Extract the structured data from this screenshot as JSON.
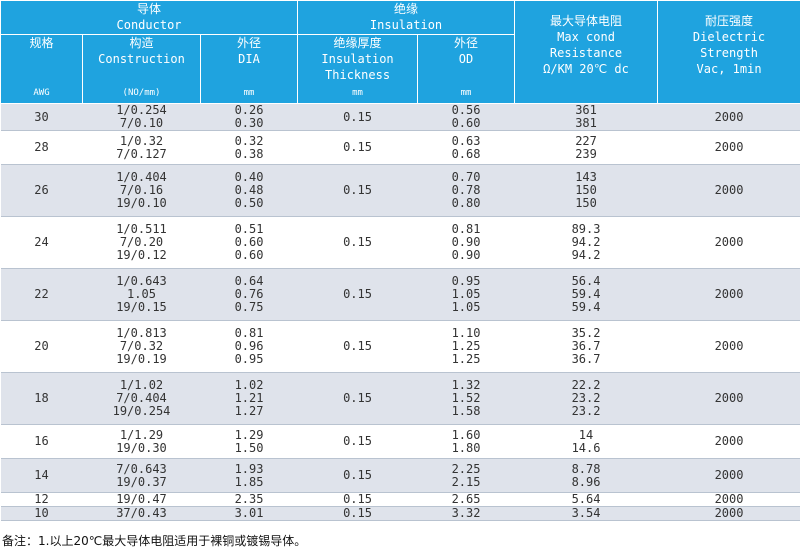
{
  "header": {
    "conductor_cn": "导体",
    "conductor_en": "Conductor",
    "insulation_cn": "绝缘",
    "insulation_en": "Insulation",
    "resistance_cn": "最大导体电阻",
    "resistance_en1": "Max cond",
    "resistance_en2": "Resistance",
    "resistance_en3": "Ω/KM 20℃ dc",
    "dielectric_cn": "耐压强度",
    "dielectric_en1": "Dielectric",
    "dielectric_en2": "Strength",
    "dielectric_en3": "Vac, 1min",
    "gauge_cn": "规格",
    "gauge_unit": "AWG",
    "construction_cn": "构造",
    "construction_en": "Construction",
    "construction_unit": "(NO/mm)",
    "dia_cn": "外径",
    "dia_en": "DIA",
    "dia_unit": "mm",
    "thickness_cn": "绝缘厚度",
    "thickness_en1": "Insulation",
    "thickness_en2": "Thickness",
    "thickness_unit": "mm",
    "od_cn": "外径",
    "od_en": "OD",
    "od_unit": "mm"
  },
  "rows": [
    {
      "awg": "30",
      "construction": [
        "1/0.254",
        "7/0.10"
      ],
      "dia": [
        "0.26",
        "0.30"
      ],
      "thickness": "0.15",
      "od": [
        "0.56",
        "0.60"
      ],
      "resistance": [
        "361",
        "381"
      ],
      "dielectric": "2000"
    },
    {
      "awg": "28",
      "construction": [
        "1/0.32",
        "7/0.127"
      ],
      "dia": [
        "0.32",
        "0.38"
      ],
      "thickness": "0.15",
      "od": [
        "0.63",
        "0.68"
      ],
      "resistance": [
        "227",
        "239"
      ],
      "dielectric": "2000"
    },
    {
      "awg": "26",
      "construction": [
        "1/0.404",
        "7/0.16",
        "19/0.10"
      ],
      "dia": [
        "0.40",
        "0.48",
        "0.50"
      ],
      "thickness": "0.15",
      "od": [
        "0.70",
        "0.78",
        "0.80"
      ],
      "resistance": [
        "143",
        "150",
        "150"
      ],
      "dielectric": "2000"
    },
    {
      "awg": "24",
      "construction": [
        "1/0.511",
        "7/0.20",
        "19/0.12"
      ],
      "dia": [
        "0.51",
        "0.60",
        "0.60"
      ],
      "thickness": "0.15",
      "od": [
        "0.81",
        "0.90",
        "0.90"
      ],
      "resistance": [
        "89.3",
        "94.2",
        "94.2"
      ],
      "dielectric": "2000"
    },
    {
      "awg": "22",
      "construction": [
        "1/0.643",
        "1.05",
        "19/0.15"
      ],
      "dia": [
        "0.64",
        "0.76",
        "0.75"
      ],
      "thickness": "0.15",
      "od": [
        "0.95",
        "1.05",
        "1.05"
      ],
      "resistance": [
        "56.4",
        "59.4",
        "59.4"
      ],
      "dielectric": "2000"
    },
    {
      "awg": "20",
      "construction": [
        "1/0.813",
        "7/0.32",
        "19/0.19"
      ],
      "dia": [
        "0.81",
        "0.96",
        "0.95"
      ],
      "thickness": "0.15",
      "od": [
        "1.10",
        "1.25",
        "1.25"
      ],
      "resistance": [
        "35.2",
        "36.7",
        "36.7"
      ],
      "dielectric": "2000"
    },
    {
      "awg": "18",
      "construction": [
        "1/1.02",
        "7/0.404",
        "19/0.254"
      ],
      "dia": [
        "1.02",
        "1.21",
        "1.27"
      ],
      "thickness": "0.15",
      "od": [
        "1.32",
        "1.52",
        "1.58"
      ],
      "resistance": [
        "22.2",
        "23.2",
        "23.2"
      ],
      "dielectric": "2000"
    },
    {
      "awg": "16",
      "construction": [
        "1/1.29",
        "19/0.30"
      ],
      "dia": [
        "1.29",
        "1.50"
      ],
      "thickness": "0.15",
      "od": [
        "1.60",
        "1.80"
      ],
      "resistance": [
        "14",
        "14.6"
      ],
      "dielectric": "2000"
    },
    {
      "awg": "14",
      "construction": [
        "7/0.643",
        "19/0.37"
      ],
      "dia": [
        "1.93",
        "1.85"
      ],
      "thickness": "0.15",
      "od": [
        "2.25",
        "2.15"
      ],
      "resistance": [
        "8.78",
        "8.96"
      ],
      "dielectric": "2000"
    },
    {
      "awg": "12",
      "construction": [
        "19/0.47"
      ],
      "dia": [
        "2.35"
      ],
      "thickness": "0.15",
      "od": [
        "2.65"
      ],
      "resistance": [
        "5.64"
      ],
      "dielectric": "2000"
    },
    {
      "awg": "10",
      "construction": [
        "37/0.43"
      ],
      "dia": [
        "3.01"
      ],
      "thickness": "0.15",
      "od": [
        "3.32"
      ],
      "resistance": [
        "3.54"
      ],
      "dielectric": "2000"
    }
  ],
  "note": "备注：1.以上20℃最大导体电阻适用于裸铜或镀锡导体。"
}
